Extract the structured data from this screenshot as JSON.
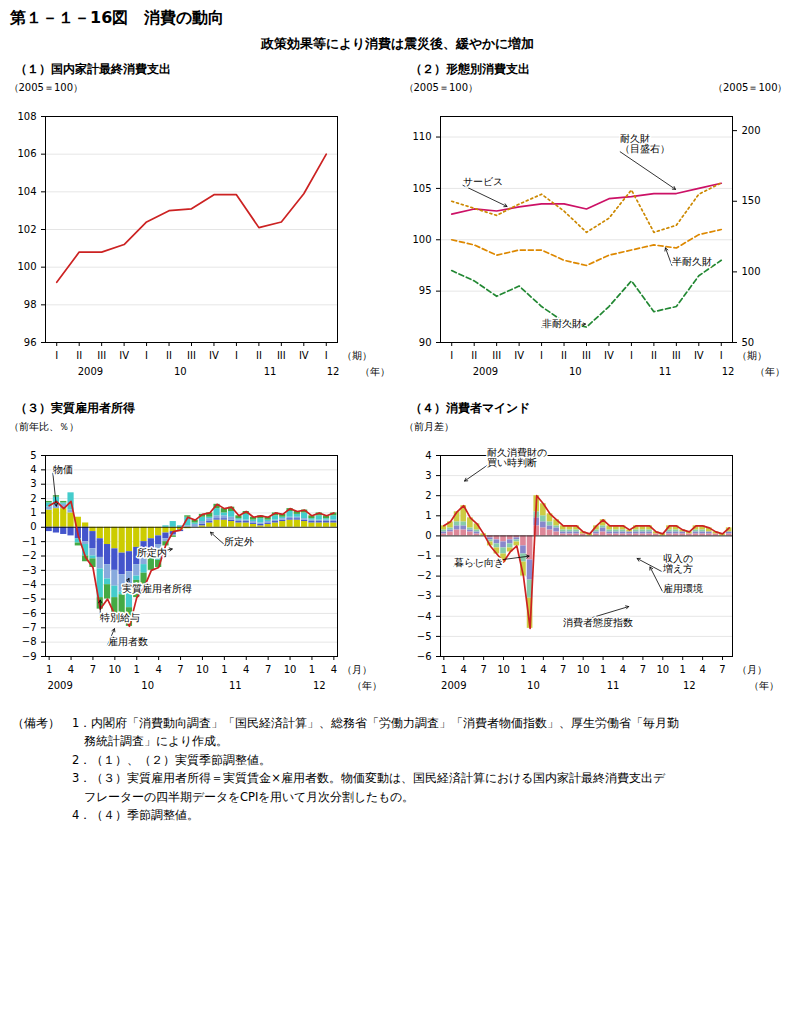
{
  "title": "第１－１－16図　消費の動向",
  "subtitle": "政策効果等により消費は震災後、緩やかに増加",
  "caption": [
    "（備考）　1．内閣府「消費動向調査」「国民経済計算」、総務省「労働力調査」「消費者物価指数」、厚生労働省「毎月勤",
    "　　　　　　務統計調査」により作成。",
    "　　　　　2．（１）、（２）実質季節調整値。",
    "　　　　　3．（３）実質雇用者所得＝実質賃金×雇用者数。物価変動は、国民経済計算における国内家計最終消費支出デ",
    "　　　　　　フレーターの四半期データをCPIを用いて月次分割したもの。",
    "　　　　　4．（４）季節調整値。"
  ],
  "chart_data": [
    {
      "type": "line",
      "title": "（１）国内家計最終消費支出",
      "y_label": "（2005＝100）",
      "x_label": "（期）",
      "categories": [
        "I",
        "II",
        "III",
        "IV",
        "I",
        "II",
        "III",
        "IV",
        "I",
        "II",
        "III",
        "IV",
        "I"
      ],
      "x_group_labels": [
        {
          "label": "2009",
          "x": 1.5
        },
        {
          "label": "10",
          "x": 5.5
        },
        {
          "label": "11",
          "x": 9.5
        },
        {
          "label": "12",
          "x": 12.3
        }
      ],
      "x_group_unit": {
        "label": "（年）",
        "x": 13.5
      },
      "series": [
        {
          "color": "#cc2222",
          "line_style": "solid",
          "values": [
            99.2,
            100.8,
            100.8,
            101.2,
            102.4,
            103.0,
            103.1,
            103.85,
            103.85,
            102.1,
            102.4,
            103.9,
            106.0
          ]
        }
      ],
      "ylim": [
        96,
        108
      ],
      "yticks": [
        96,
        98,
        100,
        102,
        104,
        106,
        108
      ],
      "grid": true
    },
    {
      "type": "line",
      "title": "（２）形態別消費支出",
      "y_label": "（2005＝100）",
      "y2_label": "（2005＝100）",
      "x_label": "（期）",
      "categories": [
        "I",
        "II",
        "III",
        "IV",
        "I",
        "II",
        "III",
        "IV",
        "I",
        "II",
        "III",
        "IV",
        "I"
      ],
      "x_group_labels": [
        {
          "label": "2009",
          "x": 1.5
        },
        {
          "label": "10",
          "x": 5.5
        },
        {
          "label": "11",
          "x": 9.5
        },
        {
          "label": "12",
          "x": 12.3
        }
      ],
      "x_group_unit": {
        "label": "（年）",
        "x": 13.5
      },
      "series": [
        {
          "color": "#cc1166",
          "line_style": "solid",
          "values": [
            102.5,
            103.0,
            102.8,
            103.2,
            103.5,
            103.5,
            103.0,
            104.0,
            104.2,
            104.5,
            104.5,
            105.0,
            105.5
          ]
        },
        {
          "color": "#228833",
          "line_style": "dashed",
          "values": [
            97.0,
            96.0,
            94.5,
            95.5,
            93.5,
            92.0,
            91.5,
            93.5,
            96.0,
            93.0,
            93.5,
            96.5,
            98.0
          ]
        },
        {
          "color": "#dd8800",
          "line_style": "dashed",
          "values": [
            100.0,
            99.5,
            98.5,
            99.0,
            99.0,
            98.0,
            97.5,
            98.5,
            99.0,
            99.5,
            99.2,
            100.5,
            101.0
          ]
        },
        {
          "color": "#cc8800",
          "line_style": "dotted",
          "axis": "y2",
          "values": [
            150.0,
            145.0,
            140.0,
            148.0,
            155.0,
            143.0,
            128.0,
            138.0,
            158.0,
            128.0,
            133.0,
            155.0,
            163.0
          ]
        }
      ],
      "annotations": [
        {
          "text": "サービス",
          "x": 2.5,
          "y": 103.2,
          "text_x": 0.5,
          "text_y": 105.3
        },
        {
          "text": "非耐久財",
          "x": 6,
          "y": 91.8,
          "text_x": 4.0,
          "text_y": 91.5
        },
        {
          "text": "半耐久財",
          "x": 9.5,
          "y": 99.3,
          "text_x": 9.8,
          "text_y": 97.5
        },
        {
          "text": "耐久財\n（目盛右）",
          "x": 10,
          "y": 158,
          "text_x": 7.5,
          "text_y": 185,
          "axis": "y2"
        }
      ],
      "ylim": [
        90,
        112
      ],
      "yticks": [
        90,
        95,
        100,
        105,
        110
      ],
      "y2lim": [
        50,
        210
      ],
      "y2ticks": [
        50,
        100,
        150,
        200
      ],
      "grid": true
    },
    {
      "type": "bar",
      "stacked": true,
      "title": "（３）実質雇用者所得",
      "y_label": "（前年比、％）",
      "x_label": "（月）",
      "categories": [
        "1",
        null,
        null,
        "4",
        null,
        null,
        "7",
        null,
        null,
        "10",
        null,
        null,
        "1",
        null,
        null,
        "4",
        null,
        null,
        "7",
        null,
        null,
        "10",
        null,
        null,
        "1",
        null,
        null,
        "4",
        null,
        null,
        "7",
        null,
        null,
        "10",
        null,
        null,
        "1",
        null,
        null,
        "4"
      ],
      "x_group_labels": [
        {
          "label": "2009",
          "x": 1.5
        },
        {
          "label": "10",
          "x": 13.5
        },
        {
          "label": "11",
          "x": 25.5
        },
        {
          "label": "12",
          "x": 37.0
        }
      ],
      "x_group_unit": {
        "label": "（年）",
        "x": 41.5
      },
      "series": [
        {
          "color": "#cccc00",
          "values": [
            1.2,
            1.3,
            1.3,
            1.0,
            0.7,
            0.3,
            -0.3,
            -0.8,
            -1.2,
            -1.5,
            -1.8,
            -1.7,
            -1.4,
            -1.0,
            -0.8,
            -0.6,
            -0.4,
            -0.3,
            -0.2,
            -0.1,
            0.0,
            0.1,
            0.3,
            0.5,
            0.5,
            0.4,
            0.3,
            0.3,
            0.2,
            0.1,
            0.2,
            0.3,
            0.4,
            0.5,
            0.5,
            0.4,
            0.3,
            0.3,
            0.3,
            0.3
          ]
        },
        {
          "color": "#4455cc",
          "values": [
            -0.3,
            -0.4,
            -0.5,
            -0.6,
            -0.8,
            -1.0,
            -1.2,
            -1.3,
            -1.4,
            -1.5,
            -1.5,
            -1.4,
            -1.2,
            -1.0,
            -0.8,
            -0.6,
            -0.4,
            -0.2,
            -0.1,
            0.0,
            0.0,
            0.1,
            0.1,
            0.1,
            0.1,
            0.1,
            0.1,
            0.1,
            0.1,
            0.1,
            0.1,
            0.1,
            0.1,
            0.1,
            0.1,
            0.1,
            0.1,
            0.1,
            0.1,
            0.1
          ]
        },
        {
          "color": "#88aadd",
          "values": [
            0.2,
            0.3,
            0.3,
            0.2,
            0.0,
            -0.2,
            -0.5,
            -0.8,
            -1.0,
            -1.1,
            -1.2,
            -1.0,
            -0.8,
            -0.6,
            -0.4,
            -0.3,
            -0.2,
            -0.1,
            0.0,
            0.1,
            0.2,
            0.2,
            0.2,
            0.2,
            0.2,
            0.2,
            0.1,
            0.1,
            0.1,
            0.1,
            0.1,
            0.1,
            0.1,
            0.1,
            0.1,
            0.1,
            0.1,
            0.1,
            0.1,
            0.1
          ]
        },
        {
          "color": "#44cccc",
          "values": [
            0.3,
            0.5,
            0.1,
            1.2,
            -0.3,
            -0.8,
            -0.2,
            -2.0,
            -0.4,
            -0.8,
            -0.2,
            -1.5,
            -0.3,
            -0.6,
            -0.2,
            -0.8,
            0.1,
            0.4,
            0.1,
            0.6,
            0.1,
            0.3,
            0.1,
            0.5,
            0.2,
            0.4,
            0.1,
            0.4,
            0.1,
            0.3,
            0.1,
            0.3,
            0.1,
            0.4,
            0.2,
            0.4,
            0.1,
            0.3,
            0.1,
            0.3
          ]
        },
        {
          "color": "#44aa44",
          "values": [
            0.1,
            0.1,
            0.1,
            0.0,
            -0.2,
            -0.4,
            -0.6,
            -0.8,
            -1.0,
            -1.2,
            -1.3,
            -1.3,
            -1.2,
            -1.0,
            -0.8,
            -0.5,
            -0.3,
            -0.1,
            0.0,
            0.1,
            0.2,
            0.2,
            0.3,
            0.3,
            0.3,
            0.3,
            0.2,
            0.2,
            0.2,
            0.2,
            0.2,
            0.2,
            0.2,
            0.2,
            0.2,
            0.2,
            0.2,
            0.2,
            0.2,
            0.2
          ]
        },
        {
          "type": "line",
          "color": "#cc2222",
          "values": [
            1.5,
            1.8,
            1.3,
            1.8,
            -0.6,
            -2.1,
            -2.8,
            -5.7,
            -5.0,
            -6.1,
            -6.0,
            -6.9,
            -4.9,
            -4.2,
            -3.0,
            -2.8,
            -1.2,
            -0.3,
            -0.2,
            0.7,
            0.5,
            0.9,
            1.0,
            1.6,
            1.3,
            1.4,
            0.8,
            1.1,
            0.7,
            0.8,
            0.7,
            1.0,
            0.9,
            1.3,
            1.1,
            1.2,
            0.8,
            1.0,
            0.8,
            1.0
          ]
        }
      ],
      "annotations": [
        {
          "text": "物価",
          "x": 1,
          "y": 1.4,
          "text_x": 0.5,
          "text_y": 3.8
        },
        {
          "text": "所定内",
          "x": 17,
          "y": -1.5,
          "text_x": 12,
          "text_y": -2.0
        },
        {
          "text": "所定外",
          "x": 22,
          "y": -0.3,
          "text_x": 24,
          "text_y": -1.2
        },
        {
          "text": "実質雇用者所得",
          "x": 11,
          "y": -3.5,
          "text_x": 10,
          "text_y": -4.5
        },
        {
          "text": "特別給与",
          "x": 7,
          "y": -5.0,
          "text_x": 7,
          "text_y": -6.5
        },
        {
          "text": "雇用者数",
          "x": 9,
          "y": -7.0,
          "text_x": 8,
          "text_y": -8.2
        }
      ],
      "ylim": [
        -9,
        5
      ],
      "yticks": [
        -9,
        -8,
        -7,
        -6,
        -5,
        -4,
        -3,
        -2,
        -1,
        0,
        1,
        2,
        3,
        4,
        5
      ],
      "grid": true
    },
    {
      "type": "bar",
      "stacked": true,
      "title": "（４）消費者マインド",
      "y_label": "（前月差）",
      "x_label": "（月）",
      "categories": [
        "1",
        null,
        null,
        "4",
        null,
        null,
        "7",
        null,
        null,
        "10",
        null,
        null,
        "1",
        null,
        null,
        "4",
        null,
        null,
        "7",
        null,
        null,
        "10",
        null,
        null,
        "1",
        null,
        null,
        "4",
        null,
        null,
        "7",
        null,
        null,
        "10",
        null,
        null,
        "1",
        null,
        null,
        "4",
        null,
        null,
        "7",
        null
      ],
      "x_group_labels": [
        {
          "label": "2009",
          "x": 1.5
        },
        {
          "label": "10",
          "x": 13.5
        },
        {
          "label": "11",
          "x": 25.5
        },
        {
          "label": "12",
          "x": 37.0
        }
      ],
      "x_group_unit": {
        "label": "（年）",
        "x": 46.0
      },
      "series": [
        {
          "color": "#dd8899",
          "values": [
            0.1,
            0.2,
            0.3,
            0.3,
            0.2,
            0.1,
            0.0,
            -0.1,
            -0.2,
            -0.3,
            -0.2,
            -0.1,
            -0.5,
            -1.2,
            0.5,
            0.4,
            0.3,
            0.2,
            0.1,
            0.1,
            0.1,
            0.1,
            0.0,
            0.1,
            0.2,
            0.1,
            0.1,
            0.1,
            0.1,
            0.1,
            0.1,
            0.1,
            0.1,
            0.0,
            0.1,
            0.1,
            0.1,
            0.1,
            0.1,
            0.1,
            0.1,
            0.1,
            0.0,
            0.1
          ]
        },
        {
          "color": "#8888cc",
          "values": [
            0.1,
            0.1,
            0.2,
            0.2,
            0.1,
            0.1,
            0.0,
            -0.1,
            -0.2,
            -0.3,
            -0.2,
            -0.1,
            -0.4,
            -1.0,
            0.4,
            0.3,
            0.2,
            0.2,
            0.1,
            0.1,
            0.1,
            0.0,
            0.0,
            0.1,
            0.2,
            0.1,
            0.1,
            0.1,
            0.1,
            0.1,
            0.1,
            0.1,
            0.0,
            0.0,
            0.1,
            0.1,
            0.1,
            0.0,
            0.1,
            0.1,
            0.1,
            0.0,
            0.0,
            0.1
          ]
        },
        {
          "color": "#88ccaa",
          "values": [
            0.1,
            0.1,
            0.2,
            0.2,
            0.1,
            0.1,
            0.0,
            -0.1,
            -0.2,
            -0.3,
            -0.2,
            -0.1,
            -0.4,
            -0.9,
            0.3,
            0.3,
            0.2,
            0.1,
            0.1,
            0.1,
            0.1,
            0.0,
            0.0,
            0.1,
            0.1,
            0.1,
            0.1,
            0.1,
            0.0,
            0.1,
            0.1,
            0.1,
            0.0,
            0.0,
            0.1,
            0.1,
            0.0,
            0.0,
            0.1,
            0.1,
            0.0,
            0.0,
            0.0,
            0.0
          ]
        },
        {
          "color": "#cccc44",
          "values": [
            0.2,
            0.3,
            0.5,
            0.8,
            0.5,
            0.3,
            0.1,
            -0.2,
            -0.3,
            -0.4,
            -0.2,
            -0.2,
            -0.7,
            -1.5,
            0.8,
            0.6,
            0.4,
            0.3,
            0.2,
            0.2,
            0.2,
            0.1,
            0.1,
            0.2,
            0.3,
            0.2,
            0.2,
            0.2,
            0.1,
            0.2,
            0.2,
            0.2,
            0.1,
            0.1,
            0.2,
            0.2,
            0.1,
            0.1,
            0.2,
            0.2,
            0.2,
            0.1,
            0.1,
            0.2
          ]
        },
        {
          "type": "line",
          "color": "#cc2222",
          "values": [
            0.5,
            0.7,
            1.2,
            1.5,
            0.9,
            0.6,
            0.1,
            -0.5,
            -0.9,
            -1.3,
            -0.8,
            -0.5,
            -2.0,
            -4.6,
            2.0,
            1.6,
            1.1,
            0.8,
            0.5,
            0.5,
            0.5,
            0.2,
            0.1,
            0.5,
            0.8,
            0.5,
            0.5,
            0.5,
            0.3,
            0.5,
            0.5,
            0.5,
            0.2,
            0.1,
            0.5,
            0.5,
            0.3,
            0.2,
            0.5,
            0.5,
            0.4,
            0.2,
            0.1,
            0.4
          ]
        }
      ],
      "annotations": [
        {
          "text": "耐久消費財の\n買い時判断",
          "x": 3,
          "y": 2.7,
          "text_x": 6.5,
          "text_y": 3.5
        },
        {
          "text": "暮らし向き",
          "x": 13,
          "y": -1.0,
          "text_x": 1.5,
          "text_y": -1.5
        },
        {
          "text": "消費者態度指数",
          "x": 28,
          "y": -3.5,
          "text_x": 18,
          "text_y": -4.5
        },
        {
          "text": "収入の\n増え方",
          "x": 29,
          "y": -1.1,
          "text_x": 33,
          "text_y": -1.8
        },
        {
          "text": "雇用環境",
          "x": 31,
          "y": -1.5,
          "text_x": 33,
          "text_y": -2.8
        }
      ],
      "ylim": [
        -6,
        4
      ],
      "yticks": [
        -6,
        -5,
        -4,
        -3,
        -2,
        -1,
        0,
        1,
        2,
        3,
        4
      ],
      "grid": true
    }
  ]
}
